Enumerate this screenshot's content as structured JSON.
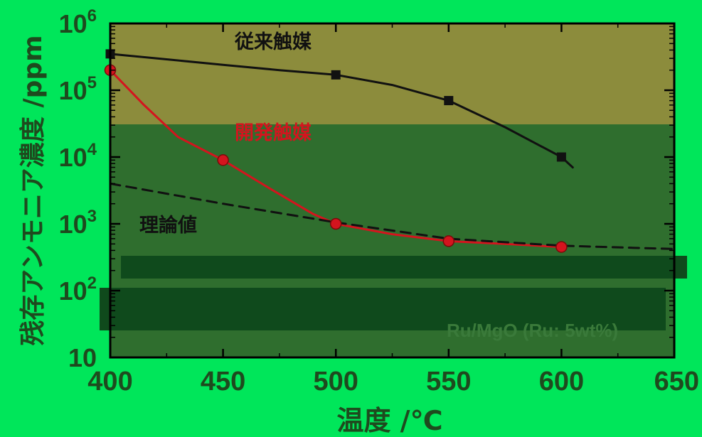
{
  "colors": {
    "page_background": "#00E65A",
    "plot_background": "#8C8C3C",
    "plot_background_dark": "#2F6E2E",
    "band_dark": "#0F4A1C",
    "frame": "#000000",
    "tick_text": "#1E4A1E",
    "conventional_line": "#111111",
    "developed_line": "#D4141E",
    "theoretical_line": "#111111"
  },
  "chart_data": {
    "type": "line",
    "xlabel": "温度 /℃",
    "ylabel": "残存アンモニア濃度 /ppm",
    "xlim": [
      400,
      650
    ],
    "ylim": [
      10,
      1000000
    ],
    "y_scale": "log",
    "grid": false,
    "x_ticks": [
      "400",
      "450",
      "500",
      "550",
      "600",
      "650"
    ],
    "y_ticks": [
      {
        "base": "10",
        "exp": ""
      },
      {
        "base": "10",
        "exp": "2"
      },
      {
        "base": "10",
        "exp": "3"
      },
      {
        "base": "10",
        "exp": "4"
      },
      {
        "base": "10",
        "exp": "5"
      },
      {
        "base": "10",
        "exp": "6"
      }
    ],
    "series": [
      {
        "name": "従来触媒",
        "marker": "square",
        "line_style": "solid",
        "x": [
          400,
          500,
          550,
          600
        ],
        "y": [
          350000,
          170000,
          70000,
          10000
        ],
        "curve_x": [
          400,
          425,
          450,
          475,
          500,
          525,
          550,
          575,
          600,
          605
        ],
        "curve_y": [
          350000,
          290000,
          240000,
          200000,
          170000,
          120000,
          70000,
          28000,
          10000,
          7000
        ]
      },
      {
        "name": "開発触媒",
        "marker": "circle",
        "line_style": "solid",
        "x": [
          400,
          450,
          500,
          550,
          600
        ],
        "y": [
          200000,
          9000,
          1000,
          550,
          450
        ],
        "curve_x": [
          400,
          415,
          430,
          450,
          470,
          490,
          500,
          525,
          550,
          575,
          600
        ],
        "curve_y": [
          200000,
          60000,
          20000,
          9000,
          3500,
          1400,
          1000,
          700,
          550,
          500,
          450
        ]
      },
      {
        "name": "理論値",
        "marker": "none",
        "line_style": "dashed",
        "x": [
          400,
          450,
          500,
          550,
          600,
          650
        ],
        "y": [
          4000,
          2000,
          1050,
          600,
          470,
          420
        ]
      }
    ],
    "annotations": [
      {
        "text": "従来触媒",
        "series": "従来触媒"
      },
      {
        "text": "開発触媒",
        "series": "開発触媒"
      },
      {
        "text": "理論値",
        "series": "理論値"
      },
      {
        "text": "Ru/MgO (Ru: 5wt%)"
      }
    ]
  }
}
